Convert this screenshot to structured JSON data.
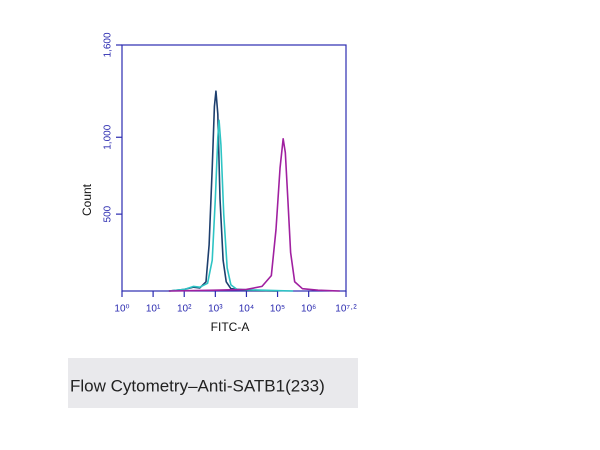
{
  "chart_data": {
    "type": "line",
    "caption": "Flow Cytometry–Anti-SATB1(233)",
    "xlabel": "FITC-A",
    "ylabel": "Count",
    "xscale": "log",
    "xlim": [
      1,
      15848932
    ],
    "ylim": [
      0,
      1600
    ],
    "xticks": [
      {
        "value": 1,
        "label": "10⁰"
      },
      {
        "value": 10,
        "label": "10¹"
      },
      {
        "value": 100,
        "label": "10²"
      },
      {
        "value": 1000,
        "label": "10³"
      },
      {
        "value": 10000,
        "label": "10⁴"
      },
      {
        "value": 100000,
        "label": "10⁵"
      },
      {
        "value": 1000000,
        "label": "10⁶"
      },
      {
        "value": 15848932,
        "label": "10⁷·²"
      }
    ],
    "yticks": [
      500,
      {
        "value": 1000,
        "label": "1,000"
      },
      {
        "value": 1600,
        "label": "1,600"
      }
    ],
    "series": [
      {
        "color": "#1d3f6e",
        "x": [
          32,
          100,
          200,
          316,
          501,
          631,
          794,
          933,
          1047,
          1202,
          1413,
          1778,
          2239,
          3162,
          10000,
          100000
        ],
        "values": [
          0,
          10,
          25,
          20,
          60,
          300,
          800,
          1200,
          1300,
          1150,
          600,
          200,
          60,
          15,
          5,
          0
        ]
      },
      {
        "color": "#2ec4c4",
        "x": [
          32,
          100,
          200,
          316,
          562,
          794,
          1000,
          1202,
          1318,
          1514,
          1862,
          2399,
          3162,
          5012,
          31623,
          316228
        ],
        "values": [
          0,
          10,
          30,
          25,
          50,
          200,
          600,
          1000,
          1110,
          950,
          500,
          150,
          40,
          10,
          5,
          0
        ]
      },
      {
        "color": "#a020a0",
        "x": [
          32,
          1000,
          10000,
          31623,
          63096,
          89125,
          120226,
          151356,
          177828,
          213796,
          263027,
          354813,
          630957,
          1995262,
          10000000
        ],
        "values": [
          0,
          5,
          10,
          30,
          100,
          400,
          800,
          990,
          900,
          600,
          250,
          60,
          15,
          5,
          0
        ]
      }
    ]
  }
}
